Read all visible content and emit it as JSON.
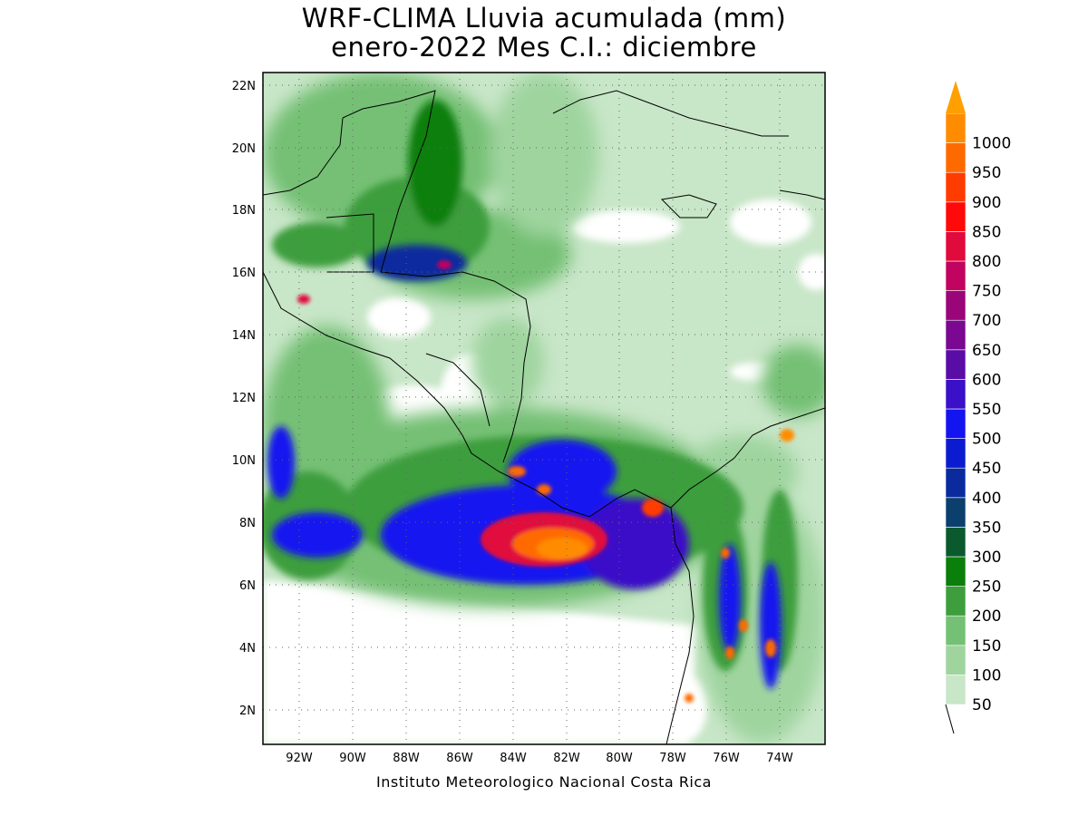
{
  "title": {
    "line1": "WRF-CLIMA Lluvia acumulada (mm)",
    "line2": "enero-2022 Mes C.I.: diciembre"
  },
  "credit": "Instituto Meteorologico Nacional Costa Rica",
  "map": {
    "lon_range": [
      -93.3,
      -72.5
    ],
    "lat_range": [
      1.0,
      22.4
    ],
    "lat_ticks": [
      "22N",
      "20N",
      "18N",
      "16N",
      "14N",
      "12N",
      "10N",
      "8N",
      "6N",
      "4N",
      "2N"
    ],
    "lon_ticks": [
      "92W",
      "90W",
      "88W",
      "86W",
      "84W",
      "82W",
      "80W",
      "78W",
      "76W",
      "74W"
    ],
    "grid": "dotted",
    "field": "accumulated rainfall (mm)"
  },
  "colorbar": {
    "position": "right",
    "labels": [
      "50",
      "100",
      "150",
      "200",
      "250",
      "300",
      "350",
      "400",
      "450",
      "500",
      "550",
      "600",
      "650",
      "700",
      "750",
      "800",
      "850",
      "900",
      "950",
      "1000"
    ],
    "colors": [
      "#c8e6c8",
      "#9fd49f",
      "#74c074",
      "#3e9e3e",
      "#0b7f0b",
      "#0b5a2e",
      "#0b3f6e",
      "#0b2a9e",
      "#0b1bd0",
      "#1414f0",
      "#3a10c8",
      "#5a0ca6",
      "#7a0890",
      "#9a067a",
      "#c00460",
      "#e00a3c",
      "#ff0a0a",
      "#ff3c00",
      "#ff6a00",
      "#ff8c00"
    ],
    "top_arrow_color": "#ffa000"
  }
}
